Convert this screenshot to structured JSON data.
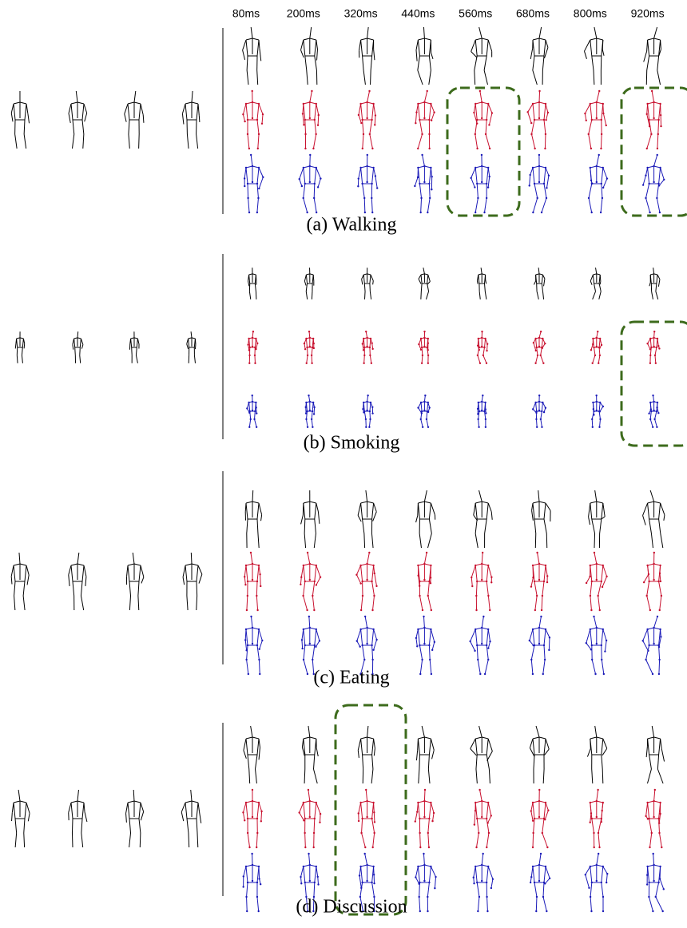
{
  "header": {
    "time_labels": [
      "80ms",
      "200ms",
      "320ms",
      "440ms",
      "560ms",
      "680ms",
      "800ms",
      "920ms"
    ]
  },
  "panels": [
    {
      "caption": "(a) Walking"
    },
    {
      "caption": "(b) Smoking"
    },
    {
      "caption": "(c) Eating"
    },
    {
      "caption": "(d) Discussion"
    }
  ]
}
